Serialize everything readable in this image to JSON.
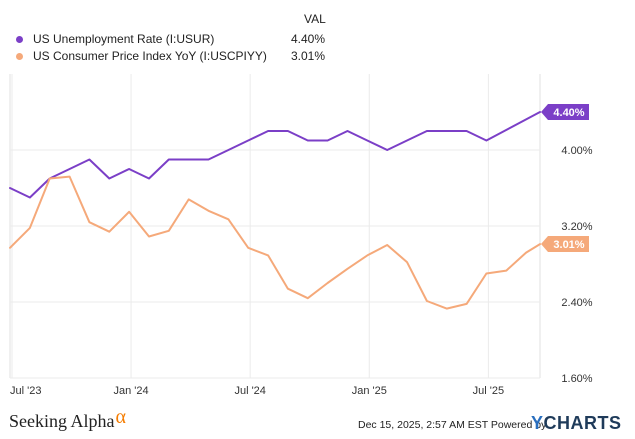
{
  "legend": {
    "header": "VAL",
    "series": [
      {
        "name": "US Unemployment Rate (I:USUR)",
        "value": "4.40%",
        "color": "#7b3fc7"
      },
      {
        "name": "US Consumer Price Index YoY (I:USCPIYY)",
        "value": "3.01%",
        "color": "#f5a97a"
      }
    ]
  },
  "footer": {
    "brand": "Seeking Alpha",
    "brand_alpha": "α",
    "timestamp": "Dec 15, 2025, 2:57 AM EST Powered by",
    "ycharts_y": "Y",
    "ycharts_rest": "CHARTS"
  },
  "chart_data": {
    "type": "line",
    "x_ticks": [
      {
        "label": "Jul '23",
        "x": 0
      },
      {
        "label": "Jan '24",
        "x": 6
      },
      {
        "label": "Jul '24",
        "x": 12
      },
      {
        "label": "Jan '25",
        "x": 18
      },
      {
        "label": "Jul '25",
        "x": 24
      }
    ],
    "y_ticks": [
      "1.60%",
      "2.40%",
      "3.20%",
      "4.00%"
    ],
    "ylim": [
      1.6,
      4.8
    ],
    "xlim": [
      -0.1,
      26.6
    ],
    "series": [
      {
        "name": "US Unemployment Rate (I:USUR)",
        "color": "#7b3fc7",
        "end_label": "4.40%",
        "points": [
          [
            -0.1,
            3.6
          ],
          [
            0.9,
            3.5
          ],
          [
            1.9,
            3.7
          ],
          [
            2.9,
            3.8
          ],
          [
            3.9,
            3.9
          ],
          [
            4.9,
            3.7
          ],
          [
            5.9,
            3.8
          ],
          [
            6.9,
            3.7
          ],
          [
            7.9,
            3.9
          ],
          [
            8.9,
            3.9
          ],
          [
            9.9,
            3.9
          ],
          [
            10.9,
            4.0
          ],
          [
            11.9,
            4.1
          ],
          [
            12.9,
            4.2
          ],
          [
            13.9,
            4.2
          ],
          [
            14.9,
            4.1
          ],
          [
            15.9,
            4.1
          ],
          [
            16.9,
            4.2
          ],
          [
            17.9,
            4.1
          ],
          [
            18.9,
            4.0
          ],
          [
            19.9,
            4.1
          ],
          [
            20.9,
            4.2
          ],
          [
            21.9,
            4.2
          ],
          [
            22.9,
            4.2
          ],
          [
            23.9,
            4.1
          ],
          [
            26.6,
            4.4
          ]
        ]
      },
      {
        "name": "US Consumer Price Index YoY (I:USCPIYY)",
        "color": "#f5a97a",
        "end_label": "3.01%",
        "points": [
          [
            -0.1,
            2.97
          ],
          [
            0.9,
            3.18
          ],
          [
            1.9,
            3.7
          ],
          [
            2.9,
            3.72
          ],
          [
            3.9,
            3.24
          ],
          [
            4.9,
            3.14
          ],
          [
            5.9,
            3.35
          ],
          [
            6.9,
            3.09
          ],
          [
            7.9,
            3.15
          ],
          [
            8.9,
            3.48
          ],
          [
            9.9,
            3.36
          ],
          [
            10.9,
            3.27
          ],
          [
            11.9,
            2.97
          ],
          [
            12.9,
            2.89
          ],
          [
            13.9,
            2.54
          ],
          [
            14.9,
            2.44
          ],
          [
            15.9,
            2.6
          ],
          [
            16.9,
            2.75
          ],
          [
            17.9,
            2.89
          ],
          [
            18.9,
            3.0
          ],
          [
            19.9,
            2.82
          ],
          [
            20.9,
            2.41
          ],
          [
            21.9,
            2.33
          ],
          [
            22.9,
            2.38
          ],
          [
            23.9,
            2.7
          ],
          [
            24.9,
            2.73
          ],
          [
            25.9,
            2.92
          ],
          [
            26.6,
            3.01
          ]
        ]
      }
    ]
  }
}
